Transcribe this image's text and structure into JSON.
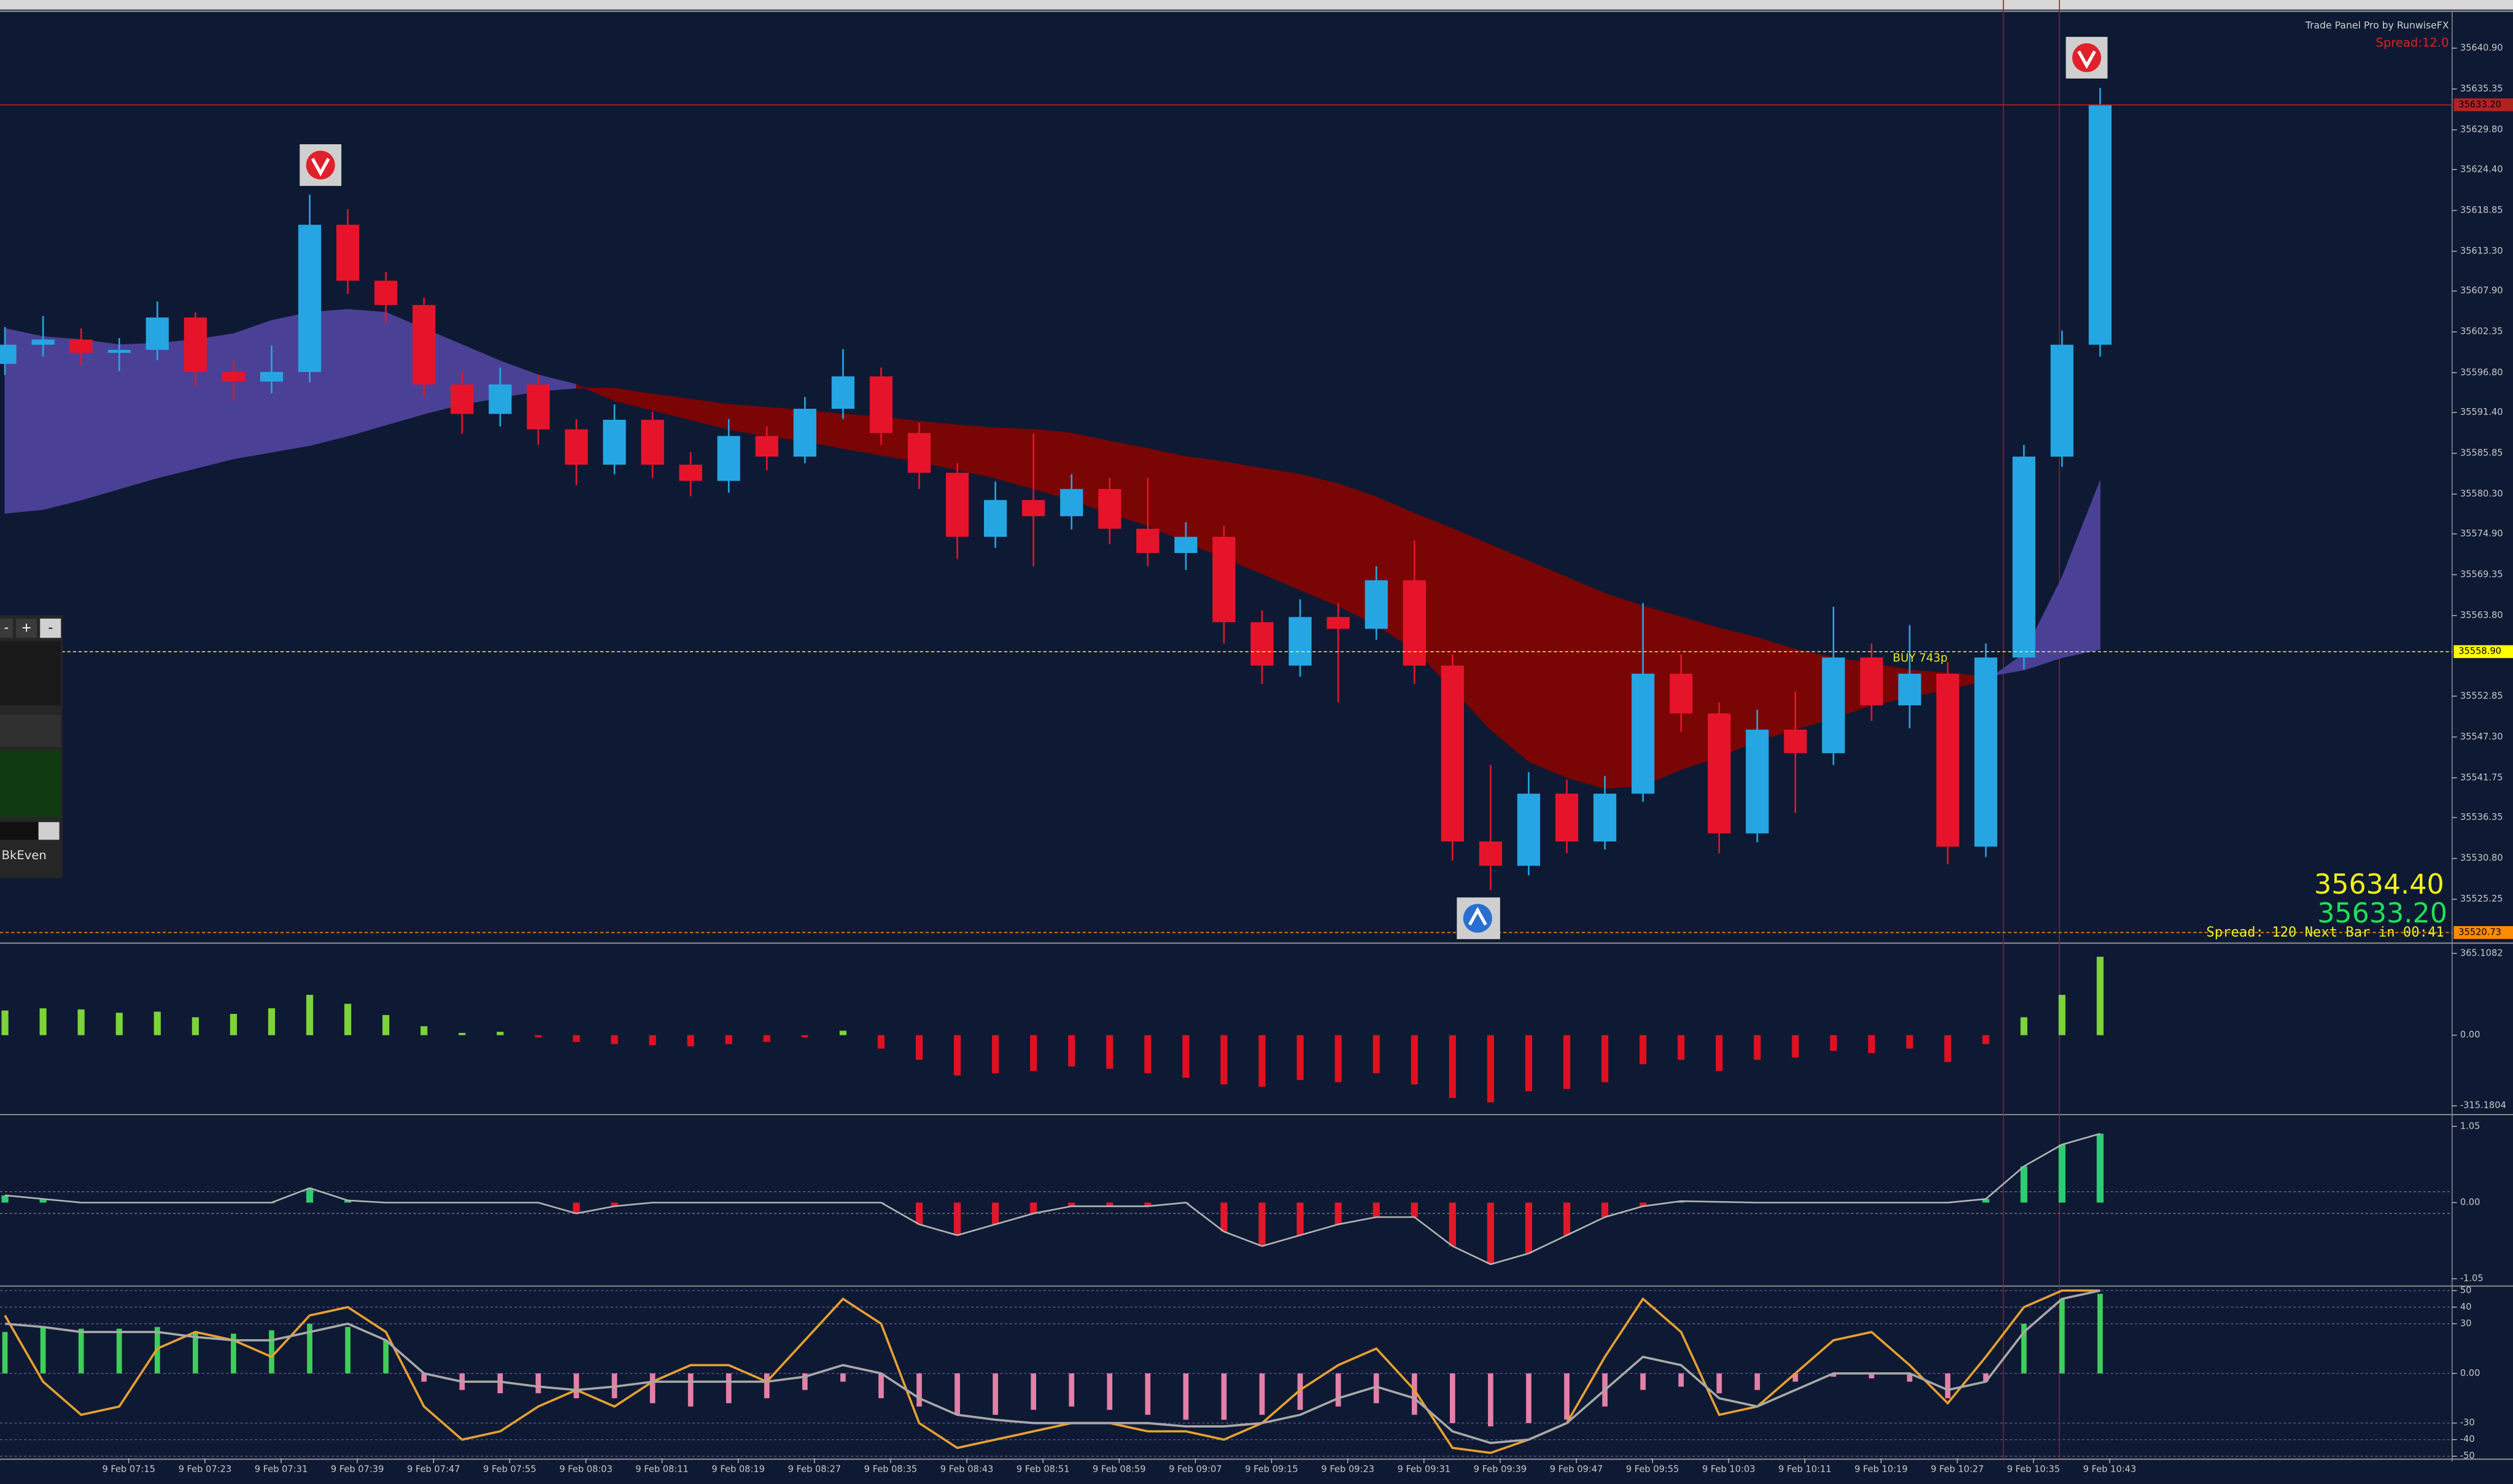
{
  "header": {
    "title": "Trade Panel Pro by RunwiseFX",
    "spread": "Spread:12.0"
  },
  "quotes": {
    "bid": "35634.40",
    "ask": "35633.20",
    "status": "Spread:  120  Next Bar in 00:41",
    "signal": "BUY 743p"
  },
  "trade_panel": {
    "buttons": [
      "-",
      "+",
      "-"
    ],
    "label": "BkEven"
  },
  "chart_data": [
    {
      "type": "candlestick",
      "xlim": [
        -0.13,
        64.24
      ],
      "xticks": [
        {
          "value": 3.25,
          "label": "9 Feb 07:15"
        },
        {
          "value": 5.25,
          "label": "9 Feb 07:23"
        },
        {
          "value": 7.25,
          "label": "9 Feb 07:31"
        },
        {
          "value": 9.25,
          "label": "9 Feb 07:39"
        },
        {
          "value": 11.25,
          "label": "9 Feb 07:47"
        },
        {
          "value": 13.25,
          "label": "9 Feb 07:55"
        },
        {
          "value": 15.25,
          "label": "9 Feb 08:03"
        },
        {
          "value": 17.25,
          "label": "9 Feb 08:11"
        },
        {
          "value": 19.25,
          "label": "9 Feb 08:19"
        },
        {
          "value": 21.25,
          "label": "9 Feb 08:27"
        },
        {
          "value": 23.25,
          "label": "9 Feb 08:35"
        },
        {
          "value": 25.25,
          "label": "9 Feb 08:43"
        },
        {
          "value": 27.25,
          "label": "9 Feb 08:51"
        },
        {
          "value": 29.25,
          "label": "9 Feb 08:59"
        },
        {
          "value": 31.25,
          "label": "9 Feb 09:07"
        },
        {
          "value": 33.25,
          "label": "9 Feb 09:15"
        },
        {
          "value": 35.25,
          "label": "9 Feb 09:23"
        },
        {
          "value": 37.25,
          "label": "9 Feb 09:31"
        },
        {
          "value": 39.25,
          "label": "9 Feb 09:39"
        },
        {
          "value": 41.25,
          "label": "9 Feb 09:47"
        },
        {
          "value": 43.25,
          "label": "9 Feb 09:55"
        },
        {
          "value": 45.25,
          "label": "9 Feb 10:03"
        },
        {
          "value": 47.25,
          "label": "9 Feb 10:11"
        },
        {
          "value": 49.25,
          "label": "9 Feb 10:19"
        },
        {
          "value": 51.25,
          "label": "9 Feb 10:27"
        },
        {
          "value": 53.25,
          "label": "9 Feb 10:35"
        },
        {
          "value": 55.25,
          "label": "9 Feb 10:43"
        }
      ],
      "ylim": [
        35519.4,
        35645.7
      ],
      "yticks": [
        {
          "value": 35640.9,
          "label": "35640.90"
        },
        {
          "value": 35635.35,
          "label": "35635.35"
        },
        {
          "value": 35629.8,
          "label": "35629.80"
        },
        {
          "value": 35624.4,
          "label": "35624.40"
        },
        {
          "value": 35618.85,
          "label": "35618.85"
        },
        {
          "value": 35613.3,
          "label": "35613.30"
        },
        {
          "value": 35607.9,
          "label": "35607.90"
        },
        {
          "value": 35602.35,
          "label": "35602.35"
        },
        {
          "value": 35596.8,
          "label": "35596.80"
        },
        {
          "value": 35591.4,
          "label": "35591.40"
        },
        {
          "value": 35585.85,
          "label": "35585.85"
        },
        {
          "value": 35580.3,
          "label": "35580.30"
        },
        {
          "value": 35574.9,
          "label": "35574.90"
        },
        {
          "value": 35569.35,
          "label": "35569.35"
        },
        {
          "value": 35563.8,
          "label": "35563.80"
        },
        {
          "value": 35552.85,
          "label": "35552.85"
        },
        {
          "value": 35547.3,
          "label": "35547.30"
        },
        {
          "value": 35541.75,
          "label": "35541.75"
        },
        {
          "value": 35536.35,
          "label": "35536.35"
        },
        {
          "value": 35530.8,
          "label": "35530.80"
        },
        {
          "value": 35525.25,
          "label": "35525.25"
        }
      ],
      "open": [
        35598.0,
        35600.6,
        35601.3,
        35599.5,
        35599.9,
        35604.3,
        35596.9,
        35595.6,
        35596.9,
        35616.9,
        35609.3,
        35606.0,
        35595.2,
        35591.2,
        35595.2,
        35589.1,
        35584.3,
        35590.4,
        35584.3,
        35582.1,
        35588.2,
        35585.4,
        35591.9,
        35596.3,
        35588.6,
        35583.2,
        35574.5,
        35579.5,
        35577.3,
        35581.0,
        35575.6,
        35572.3,
        35574.5,
        35562.9,
        35557.0,
        35563.6,
        35562.0,
        35568.6,
        35557.0,
        35533.1,
        35529.8,
        35539.6,
        35533.1,
        35539.6,
        35555.9,
        35550.5,
        35534.2,
        35548.3,
        35545.1,
        35558.1,
        35551.6,
        35555.9,
        35532.4,
        35558.1,
        35585.4,
        35600.6
      ],
      "high": [
        35603.0,
        35604.5,
        35602.8,
        35601.5,
        35606.5,
        35605.0,
        35598.5,
        35600.5,
        35621.0,
        35619.0,
        35610.5,
        35607.0,
        35597.0,
        35597.5,
        35596.5,
        35590.5,
        35592.5,
        35591.5,
        35586.0,
        35590.5,
        35589.5,
        35593.5,
        35600.0,
        35597.5,
        35590.0,
        35584.5,
        35582.0,
        35588.5,
        35583.0,
        35582.5,
        35582.5,
        35576.5,
        35576.0,
        35564.5,
        35566.0,
        35565.5,
        35570.5,
        35574.0,
        35558.5,
        35543.5,
        35542.5,
        35541.5,
        35542.0,
        35565.5,
        35558.5,
        35552.0,
        35551.0,
        35553.5,
        35565.0,
        35560.0,
        35562.5,
        35557.5,
        35560.0,
        35587.0,
        35602.5,
        35635.5
      ],
      "low": [
        35596.5,
        35599.0,
        35597.8,
        35597.0,
        35598.5,
        35595.0,
        35593.0,
        35594.0,
        35595.5,
        35607.5,
        35603.5,
        35593.5,
        35588.5,
        35589.5,
        35587.0,
        35581.5,
        35583.0,
        35582.5,
        35580.0,
        35580.5,
        35583.5,
        35584.5,
        35590.5,
        35587.0,
        35581.0,
        35571.5,
        35573.0,
        35570.5,
        35575.5,
        35573.5,
        35570.5,
        35570.0,
        35560.0,
        35554.5,
        35555.5,
        35552.0,
        35560.5,
        35554.5,
        35530.5,
        35526.5,
        35528.5,
        35531.5,
        35532.0,
        35538.5,
        35548.0,
        35531.5,
        35533.0,
        35537.0,
        35543.5,
        35549.5,
        35548.5,
        35530.0,
        35531.0,
        35556.5,
        35584.0,
        35599.0
      ],
      "close": [
        35600.6,
        35601.3,
        35599.5,
        35599.9,
        35604.3,
        35596.9,
        35595.6,
        35596.9,
        35616.9,
        35609.3,
        35606.0,
        35595.2,
        35591.2,
        35595.2,
        35589.1,
        35584.3,
        35590.4,
        35584.3,
        35582.1,
        35588.2,
        35585.4,
        35591.9,
        35596.3,
        35588.6,
        35583.2,
        35574.5,
        35579.5,
        35577.3,
        35581.0,
        35575.6,
        35572.3,
        35574.5,
        35562.9,
        35557.0,
        35563.6,
        35562.0,
        35568.6,
        35557.0,
        35533.1,
        35529.8,
        35539.6,
        35533.1,
        35539.6,
        35555.9,
        35550.5,
        35534.2,
        35548.3,
        35545.1,
        35558.1,
        35551.6,
        35555.9,
        35532.4,
        35558.1,
        35585.4,
        35600.6,
        35633.2
      ],
      "up_color": "#25a6e3",
      "down_color": "#e6142a",
      "cloud": {
        "a": [
          35602.8,
          35601.7,
          35601.3,
          35600.6,
          35600.8,
          35601.3,
          35602.1,
          35603.9,
          35605.0,
          35605.4,
          35605.0,
          35602.8,
          35600.6,
          35598.4,
          35596.5,
          35595.2,
          35593.0,
          35591.7,
          35590.4,
          35589.1,
          35588.2,
          35587.5,
          35586.5,
          35585.6,
          35584.7,
          35583.6,
          35582.5,
          35581.0,
          35579.5,
          35577.7,
          35576.0,
          35573.8,
          35571.6,
          35569.5,
          35567.3,
          35565.1,
          35562.5,
          35559.2,
          35553.8,
          35548.3,
          35544.0,
          35541.8,
          35540.3,
          35540.7,
          35542.9,
          35544.6,
          35546.8,
          35548.3,
          35549.9,
          35551.6,
          35552.7,
          35553.8,
          35554.9,
          35558.6,
          35569.0,
          35582.1
        ],
        "b": [
          35577.7,
          35578.2,
          35579.5,
          35581.0,
          35582.5,
          35583.8,
          35585.1,
          35586.0,
          35586.9,
          35588.2,
          35589.7,
          35591.2,
          35592.5,
          35593.4,
          35594.3,
          35594.7,
          35594.7,
          35593.9,
          35593.2,
          35592.5,
          35592.1,
          35591.7,
          35591.2,
          35590.8,
          35590.2,
          35589.7,
          35589.3,
          35589.1,
          35588.6,
          35587.5,
          35586.5,
          35585.4,
          35584.7,
          35583.8,
          35583.0,
          35581.7,
          35579.9,
          35577.7,
          35575.6,
          35573.4,
          35571.2,
          35569.0,
          35566.8,
          35565.1,
          35563.6,
          35562.1,
          35560.8,
          35559.2,
          35558.1,
          35557.3,
          35556.4,
          35556.0,
          35555.5,
          35556.4,
          35558.1,
          35559.2
        ],
        "bull_color": "#4a4196",
        "bear_color": "#7a0505"
      },
      "price_lines": [
        {
          "value": 35633.2,
          "label": "35633.20",
          "color": "#b22222"
        },
        {
          "value": 35558.9,
          "label": "35558.90",
          "color": "#ffff00"
        },
        {
          "value": 35520.73,
          "label": "35520.73",
          "color": "#ff8c00"
        }
      ]
    },
    {
      "type": "histogram",
      "ylim": [
        -351,
        393
      ],
      "yticks": [
        365.1082,
        {
          "value": 0,
          "label": "0.00"
        },
        -315.1804
      ],
      "values": [
        110,
        120,
        115,
        100,
        105,
        80,
        95,
        120,
        180,
        140,
        90,
        40,
        10,
        15,
        -10,
        -30,
        -40,
        -45,
        -50,
        -40,
        -30,
        -10,
        20,
        -60,
        -110,
        -180,
        -170,
        -160,
        -140,
        -150,
        -170,
        -190,
        -220,
        -230,
        -200,
        -210,
        -170,
        -220,
        -280,
        -300,
        -250,
        -240,
        -210,
        -130,
        -110,
        -160,
        -110,
        -100,
        -70,
        -80,
        -60,
        -120,
        -40,
        80,
        180,
        350
      ],
      "pos_color": "#7cd33a",
      "neg_color": "#e01020"
    },
    {
      "type": "area",
      "ylim": [
        -1.14,
        1.18
      ],
      "yticks": [
        1.05,
        {
          "value": 0,
          "label": "0.00"
        },
        -1.05
      ],
      "levels": [
        0.15,
        -0.15
      ],
      "values": [
        0.1,
        0.05,
        0,
        0,
        0,
        0,
        0,
        0,
        0.2,
        0.03,
        0,
        0,
        0,
        0,
        0,
        -0.15,
        -0.05,
        0,
        0,
        0,
        0,
        0,
        0,
        0,
        -0.3,
        -0.45,
        -0.3,
        -0.15,
        -0.05,
        -0.05,
        -0.05,
        0,
        -0.4,
        -0.6,
        -0.45,
        -0.3,
        -0.2,
        -0.2,
        -0.6,
        -0.85,
        -0.7,
        -0.45,
        -0.2,
        -0.05,
        0.02,
        0.01,
        0,
        0,
        0,
        0,
        0,
        0,
        0.05,
        0.5,
        0.8,
        0.95
      ],
      "line_color": "#b4b4b4",
      "pos_color": "#2ecc71",
      "neg_color": "#e0182a"
    },
    {
      "type": "combo",
      "ylim": [
        -51.3,
        50.3
      ],
      "yticks": [
        50,
        40,
        30,
        {
          "value": 0,
          "label": "0.00"
        },
        -30,
        -40,
        -50
      ],
      "values": [
        25,
        28,
        27,
        27,
        28,
        25,
        24,
        26,
        30,
        28,
        20,
        -5,
        -10,
        -12,
        -12,
        -15,
        -15,
        -18,
        -20,
        -18,
        -15,
        -10,
        -5,
        -15,
        -20,
        -25,
        -25,
        -22,
        -20,
        -22,
        -25,
        -28,
        -28,
        -25,
        -22,
        -20,
        -18,
        -25,
        -30,
        -32,
        -30,
        -28,
        -20,
        -10,
        -8,
        -12,
        -10,
        -5,
        -2,
        -3,
        -5,
        -15,
        -5,
        30,
        45,
        48
      ],
      "pos_color": "#3ecf5a",
      "neg_color": "#e47fa8",
      "series": [
        {
          "color": "#e8a030",
          "values": [
            35,
            -5,
            -25,
            -20,
            15,
            25,
            20,
            10,
            35,
            40,
            25,
            -20,
            -40,
            -35,
            -20,
            -10,
            -20,
            -5,
            5,
            5,
            -5,
            20,
            45,
            30,
            -30,
            -45,
            -40,
            -35,
            -30,
            -30,
            -35,
            -35,
            -40,
            -30,
            -10,
            5,
            15,
            -10,
            -45,
            -48,
            -40,
            -30,
            10,
            45,
            25,
            -25,
            -20,
            0,
            20,
            25,
            5,
            -18,
            10,
            40,
            50,
            50
          ]
        },
        {
          "color": "#a8a8a8",
          "values": [
            30,
            28,
            25,
            25,
            25,
            22,
            20,
            20,
            25,
            30,
            20,
            0,
            -5,
            -5,
            -8,
            -10,
            -8,
            -5,
            -5,
            -5,
            -5,
            -2,
            5,
            0,
            -15,
            -25,
            -28,
            -30,
            -30,
            -30,
            -30,
            -32,
            -32,
            -30,
            -25,
            -15,
            -8,
            -15,
            -35,
            -42,
            -40,
            -30,
            -10,
            10,
            5,
            -15,
            -20,
            -10,
            0,
            0,
            0,
            -10,
            -5,
            25,
            45,
            50
          ]
        }
      ]
    }
  ]
}
